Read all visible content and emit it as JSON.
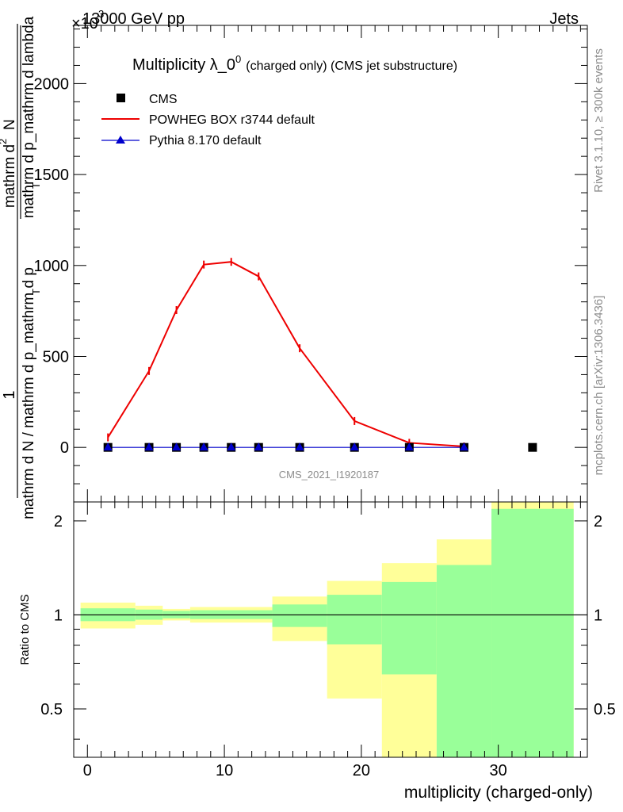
{
  "header": {
    "left": "13000 GeV pp",
    "right": "Jets",
    "exponent": "×10",
    "exponent_power": "3"
  },
  "side_labels": {
    "rivet": "Rivet 3.1.10, ≥ 300k events",
    "mcplots": "mcplots.cern.ch [arXiv:1306.3436]"
  },
  "chart_data": [
    {
      "type": "line",
      "title_main": "Multiplicity λ_0",
      "title_sup": "0",
      "title_suffix": "(charged only) (CMS jet substructure)",
      "watermark": "CMS_2021_I1920187",
      "ylabel": {
        "numerator": "1",
        "denominator": "mathrm d N / mathrm d p_mathrm d p",
        "sub": "T",
        "right_num": "mathrm d",
        "right_num_sup": "2",
        "right_num_n": "N",
        "right_den": "mathrm d p_mathrm d lambda",
        "right_den_sub": "T"
      },
      "ylim": [
        -300,
        2320
      ],
      "yticks": [
        0,
        500,
        1000,
        1500,
        2000
      ],
      "ytick_labels": [
        "0",
        "500",
        "1000",
        "1500",
        "2000"
      ],
      "xlim": [
        -1,
        36.5
      ],
      "legend": [
        "CMS",
        "POWHEG BOX r3744 default",
        "Pythia 8.170 default"
      ],
      "series": [
        {
          "name": "CMS",
          "color": "#000000",
          "marker": "square",
          "x": [
            1.5,
            4.5,
            6.5,
            8.5,
            10.5,
            12.5,
            15.5,
            19.5,
            23.5,
            27.5,
            32.5
          ],
          "values": [
            0,
            0,
            0,
            0,
            0,
            0,
            0,
            0,
            0,
            0,
            0
          ]
        },
        {
          "name": "POWHEG BOX r3744 default",
          "color": "#ee0000",
          "marker": "none",
          "x": [
            1.5,
            4.5,
            6.5,
            8.5,
            10.5,
            12.5,
            15.5,
            19.5,
            23.5,
            27.5
          ],
          "values": [
            55,
            420,
            755,
            1005,
            1020,
            940,
            545,
            145,
            25,
            5
          ]
        },
        {
          "name": "Pythia 8.170 default",
          "color": "#0000cc",
          "marker": "triangle",
          "x": [
            1.5,
            4.5,
            6.5,
            8.5,
            10.5,
            12.5,
            15.5,
            19.5,
            23.5,
            27.5
          ],
          "values": [
            0,
            0,
            0,
            0,
            0,
            0,
            0,
            0,
            0,
            0
          ]
        }
      ]
    },
    {
      "type": "area",
      "ylabel": "Ratio to CMS",
      "xlabel": "multiplicity (charged-only)",
      "ylim": [
        0.35,
        2.3
      ],
      "yticks": [
        0.5,
        1,
        2
      ],
      "ytick_labels": [
        "0.5",
        "1",
        "2"
      ],
      "xlim": [
        -1,
        36.5
      ],
      "xticks": [
        0,
        10,
        20,
        30
      ],
      "xtick_labels": [
        "0",
        "10",
        "20",
        "30"
      ],
      "reference_line": 1,
      "bins": [
        {
          "lo": -0.5,
          "hi": 3.5,
          "inner": [
            0.955,
            1.05
          ],
          "outer": [
            0.905,
            1.095
          ]
        },
        {
          "lo": 3.5,
          "hi": 5.5,
          "inner": [
            0.965,
            1.04
          ],
          "outer": [
            0.93,
            1.07
          ]
        },
        {
          "lo": 5.5,
          "hi": 7.5,
          "inner": [
            0.975,
            1.03
          ],
          "outer": [
            0.96,
            1.045
          ]
        },
        {
          "lo": 7.5,
          "hi": 13.5,
          "inner": [
            0.97,
            1.035
          ],
          "outer": [
            0.945,
            1.06
          ]
        },
        {
          "lo": 13.5,
          "hi": 17.5,
          "inner": [
            0.915,
            1.08
          ],
          "outer": [
            0.825,
            1.145
          ]
        },
        {
          "lo": 17.5,
          "hi": 21.5,
          "inner": [
            0.805,
            1.16
          ],
          "outer": [
            0.54,
            1.285
          ]
        },
        {
          "lo": 21.5,
          "hi": 25.5,
          "inner": [
            0.645,
            1.275
          ],
          "outer": [
            0.35,
            1.465
          ]
        },
        {
          "lo": 25.5,
          "hi": 29.5,
          "inner": [
            0.35,
            1.445
          ],
          "outer": [
            0.35,
            1.745
          ]
        },
        {
          "lo": 29.5,
          "hi": 35.5,
          "inner": [
            0.35,
            2.185
          ],
          "outer": [
            0.35,
            2.3
          ]
        }
      ],
      "band_colors": {
        "inner": "#99ff99",
        "outer": "#ffff99"
      }
    }
  ]
}
